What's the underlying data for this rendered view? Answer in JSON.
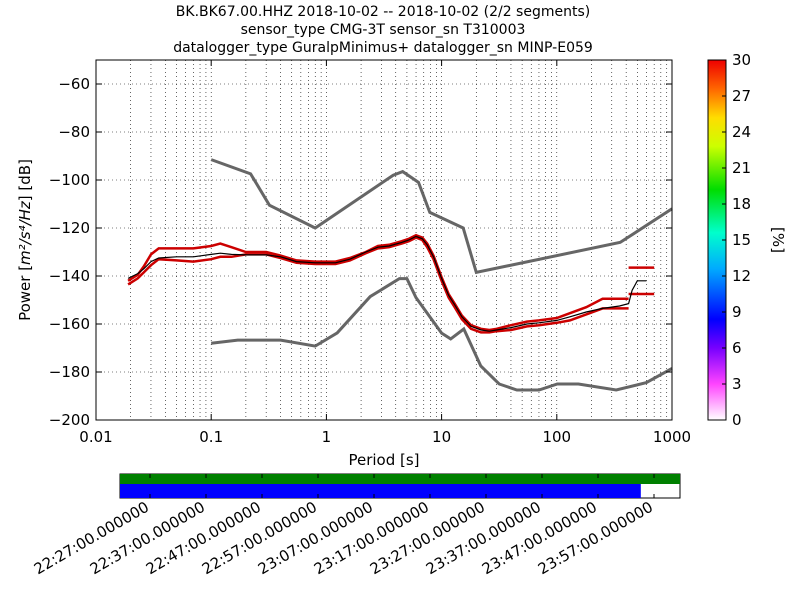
{
  "titles": [
    "BK.BK67.00.HHZ   2018-10-02 -- 2018-10-02  (2/2 segments)",
    "sensor_type CMG-3T sensor_sn T310003",
    "datalogger_type GuralpMinimus+ datalogger_sn MINP-E059"
  ],
  "chart_data": {
    "type": "line",
    "xlabel": "Period [s]",
    "ylabel_text": "Power [",
    "ylabel_units": "m²/s⁴/Hz",
    "ylabel_suffix": "] [dB]",
    "xscale": "log",
    "xlim": [
      0.01,
      1000
    ],
    "ylim": [
      -200,
      -50
    ],
    "x_ticks": [
      0.01,
      0.1,
      1,
      10,
      100,
      1000
    ],
    "x_tick_labels": [
      "0.01",
      "0.1",
      "1",
      "10",
      "100",
      "1000"
    ],
    "y_ticks": [
      -200,
      -180,
      -160,
      -140,
      -120,
      -100,
      -80,
      -60
    ],
    "y_tick_labels": [
      "−200",
      "−180",
      "−160",
      "−140",
      "−120",
      "−100",
      "−80",
      "−60"
    ],
    "grid": true,
    "colorbar": {
      "label": "[%]",
      "range": [
        0,
        30
      ],
      "ticks": [
        0,
        3,
        6,
        9,
        12,
        15,
        18,
        21,
        24,
        27,
        30
      ],
      "tick_labels": [
        "0",
        "3",
        "6",
        "9",
        "12",
        "15",
        "18",
        "21",
        "24",
        "27",
        "30"
      ]
    },
    "noise_models": [
      {
        "name": "high-noise-model",
        "color": "#666666",
        "x": [
          0.1,
          0.22,
          0.32,
          0.8,
          3.8,
          4.6,
          6.3,
          7.9,
          15.4,
          20,
          354.8,
          1000
        ],
        "y": [
          -91.5,
          -97.4,
          -110.5,
          -120,
          -98,
          -96.5,
          -101,
          -113.5,
          -120,
          -138.5,
          -126,
          -112
        ]
      },
      {
        "name": "low-noise-model",
        "color": "#666666",
        "x": [
          0.1,
          0.17,
          0.4,
          0.8,
          1.24,
          2.4,
          4.3,
          5,
          6,
          10,
          12,
          15.6,
          21.9,
          31.6,
          45,
          70,
          101,
          154,
          328,
          600,
          1000
        ],
        "y": [
          -168,
          -166.7,
          -166.7,
          -169.2,
          -163.7,
          -148.6,
          -141.1,
          -141.1,
          -149,
          -163.8,
          -166.2,
          -162.1,
          -177.5,
          -185,
          -187.5,
          -187.5,
          -185,
          -185,
          -187.5,
          -184.4,
          -178.5
        ]
      }
    ],
    "mode_curve": {
      "name": "mode",
      "color": "#000000",
      "x": [
        0.019,
        0.023,
        0.026,
        0.03,
        0.035,
        0.05,
        0.07,
        0.1,
        0.12,
        0.15,
        0.2,
        0.3,
        0.4,
        0.55,
        0.8,
        1.2,
        1.6,
        2.2,
        2.8,
        3.5,
        4.5,
        5.2,
        6,
        6.8,
        7.5,
        8.5,
        10,
        11.5,
        13,
        15,
        18,
        22,
        26,
        30,
        40,
        55,
        70,
        100,
        130,
        180,
        250,
        350,
        420,
        450,
        500,
        550,
        600
      ],
      "y": [
        -141,
        -139,
        -137,
        -134,
        -132.5,
        -132,
        -132,
        -131,
        -130.5,
        -131,
        -131.2,
        -131.2,
        -132,
        -134,
        -134.5,
        -134.5,
        -133,
        -130,
        -128,
        -127.5,
        -126,
        -125,
        -123.5,
        -124.5,
        -127,
        -132,
        -141,
        -148,
        -152,
        -157,
        -161,
        -162.5,
        -163,
        -162.5,
        -161.5,
        -160,
        -159.5,
        -158.5,
        -157,
        -155,
        -153.5,
        -152.5,
        -151.5,
        -146,
        -142,
        -142,
        -142
      ]
    },
    "histogram_traces": [
      {
        "name": "ppsd-upper",
        "color": "#cc0000",
        "x": [
          0.019,
          0.023,
          0.026,
          0.03,
          0.035,
          0.05,
          0.07,
          0.1,
          0.12,
          0.15,
          0.2,
          0.3,
          0.4,
          0.55,
          0.8,
          1.2,
          1.6,
          2.2,
          2.8,
          3.5,
          4.5,
          5.2,
          6,
          6.8,
          7.5,
          8.5,
          10,
          11.5,
          13,
          15,
          18,
          22,
          26,
          30,
          40,
          55,
          70,
          100,
          130,
          180,
          250,
          350,
          420
        ],
        "y": [
          -142,
          -139.5,
          -136,
          -131,
          -128.5,
          -128.5,
          -128.5,
          -127.5,
          -126.5,
          -128,
          -130,
          -130,
          -131.5,
          -133.5,
          -134,
          -134,
          -132.5,
          -130,
          -127.5,
          -127,
          -125.5,
          -124.5,
          -123,
          -124,
          -126.5,
          -131.5,
          -140.5,
          -147.5,
          -151.5,
          -156.5,
          -160.5,
          -162,
          -162.5,
          -162,
          -160.5,
          -159,
          -158.5,
          -157.5,
          -155.5,
          -153,
          -149.5,
          -149.5,
          -149.5
        ]
      },
      {
        "name": "ppsd-lower",
        "color": "#cc0000",
        "x": [
          0.019,
          0.023,
          0.026,
          0.03,
          0.035,
          0.05,
          0.07,
          0.1,
          0.12,
          0.15,
          0.2,
          0.3,
          0.4,
          0.55,
          0.8,
          1.2,
          1.6,
          2.2,
          2.8,
          3.5,
          4.5,
          5.2,
          6,
          6.8,
          7.5,
          8.5,
          10,
          11.5,
          13,
          15,
          18,
          22,
          26,
          30,
          40,
          55,
          70,
          100,
          130,
          180,
          250,
          350,
          420
        ],
        "y": [
          -143.5,
          -141,
          -138.5,
          -135.5,
          -133,
          -133.5,
          -134,
          -133,
          -132,
          -132,
          -131,
          -131,
          -132.5,
          -134.5,
          -135,
          -135,
          -133.5,
          -130.5,
          -128.5,
          -128,
          -126.5,
          -125.5,
          -124,
          -125,
          -128,
          -133,
          -142,
          -149,
          -153,
          -158,
          -162,
          -163.5,
          -163.5,
          -163,
          -162.5,
          -161,
          -160.5,
          -159.5,
          -158.5,
          -156,
          -153.5,
          -153.5,
          -153.5
        ]
      }
    ],
    "stray_marks": [
      {
        "x0": 420,
        "x1": 700,
        "y": -136.5
      },
      {
        "x0": 420,
        "x1": 700,
        "y": -147.5
      }
    ]
  },
  "time_axis": {
    "labels": [
      "22:27:00.000000",
      "22:37:00.000000",
      "22:47:00.000000",
      "22:57:00.000000",
      "23:07:00.000000",
      "23:17:00.000000",
      "23:27:00.000000",
      "23:37:00.000000",
      "23:47:00.000000",
      "23:57:00.000000"
    ],
    "data_coverage_fraction": 1.0,
    "psd_coverage_fraction": 0.93,
    "data_color": "#008000",
    "psd_color": "#0000ff"
  }
}
